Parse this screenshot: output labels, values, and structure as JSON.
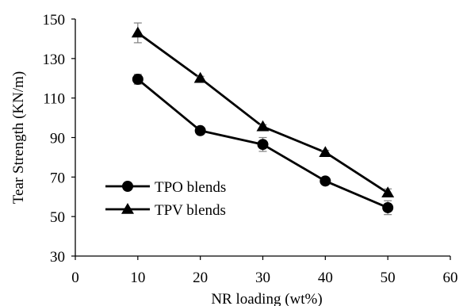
{
  "chart_data": {
    "type": "line",
    "x": [
      10,
      20,
      30,
      40,
      50
    ],
    "series": [
      {
        "name": "TPO blends",
        "marker": "circle",
        "values": [
          119.5,
          93.5,
          86.5,
          68,
          54.5
        ],
        "error": [
          2.5,
          1.0,
          3.5,
          1.0,
          3.5
        ]
      },
      {
        "name": "TPV blends",
        "marker": "triangle",
        "values": [
          143,
          120,
          95.5,
          82.5,
          62
        ],
        "error": [
          5.0,
          1.0,
          1.0,
          1.0,
          2.0
        ]
      }
    ],
    "xlabel": "NR loading (wt%)",
    "ylabel": "Tear Strength (KN/m)",
    "xlim": [
      0,
      60
    ],
    "ylim": [
      30,
      150
    ],
    "xticks": [
      "0",
      "10",
      "20",
      "30",
      "40",
      "50",
      "60"
    ],
    "yticks": [
      "30",
      "50",
      "70",
      "90",
      "110",
      "130",
      "150"
    ],
    "grid": false,
    "legend_position": "lower-left",
    "colors": {
      "line": "#000000",
      "marker": "#000000",
      "error_bar": "#7f7f7f"
    }
  }
}
